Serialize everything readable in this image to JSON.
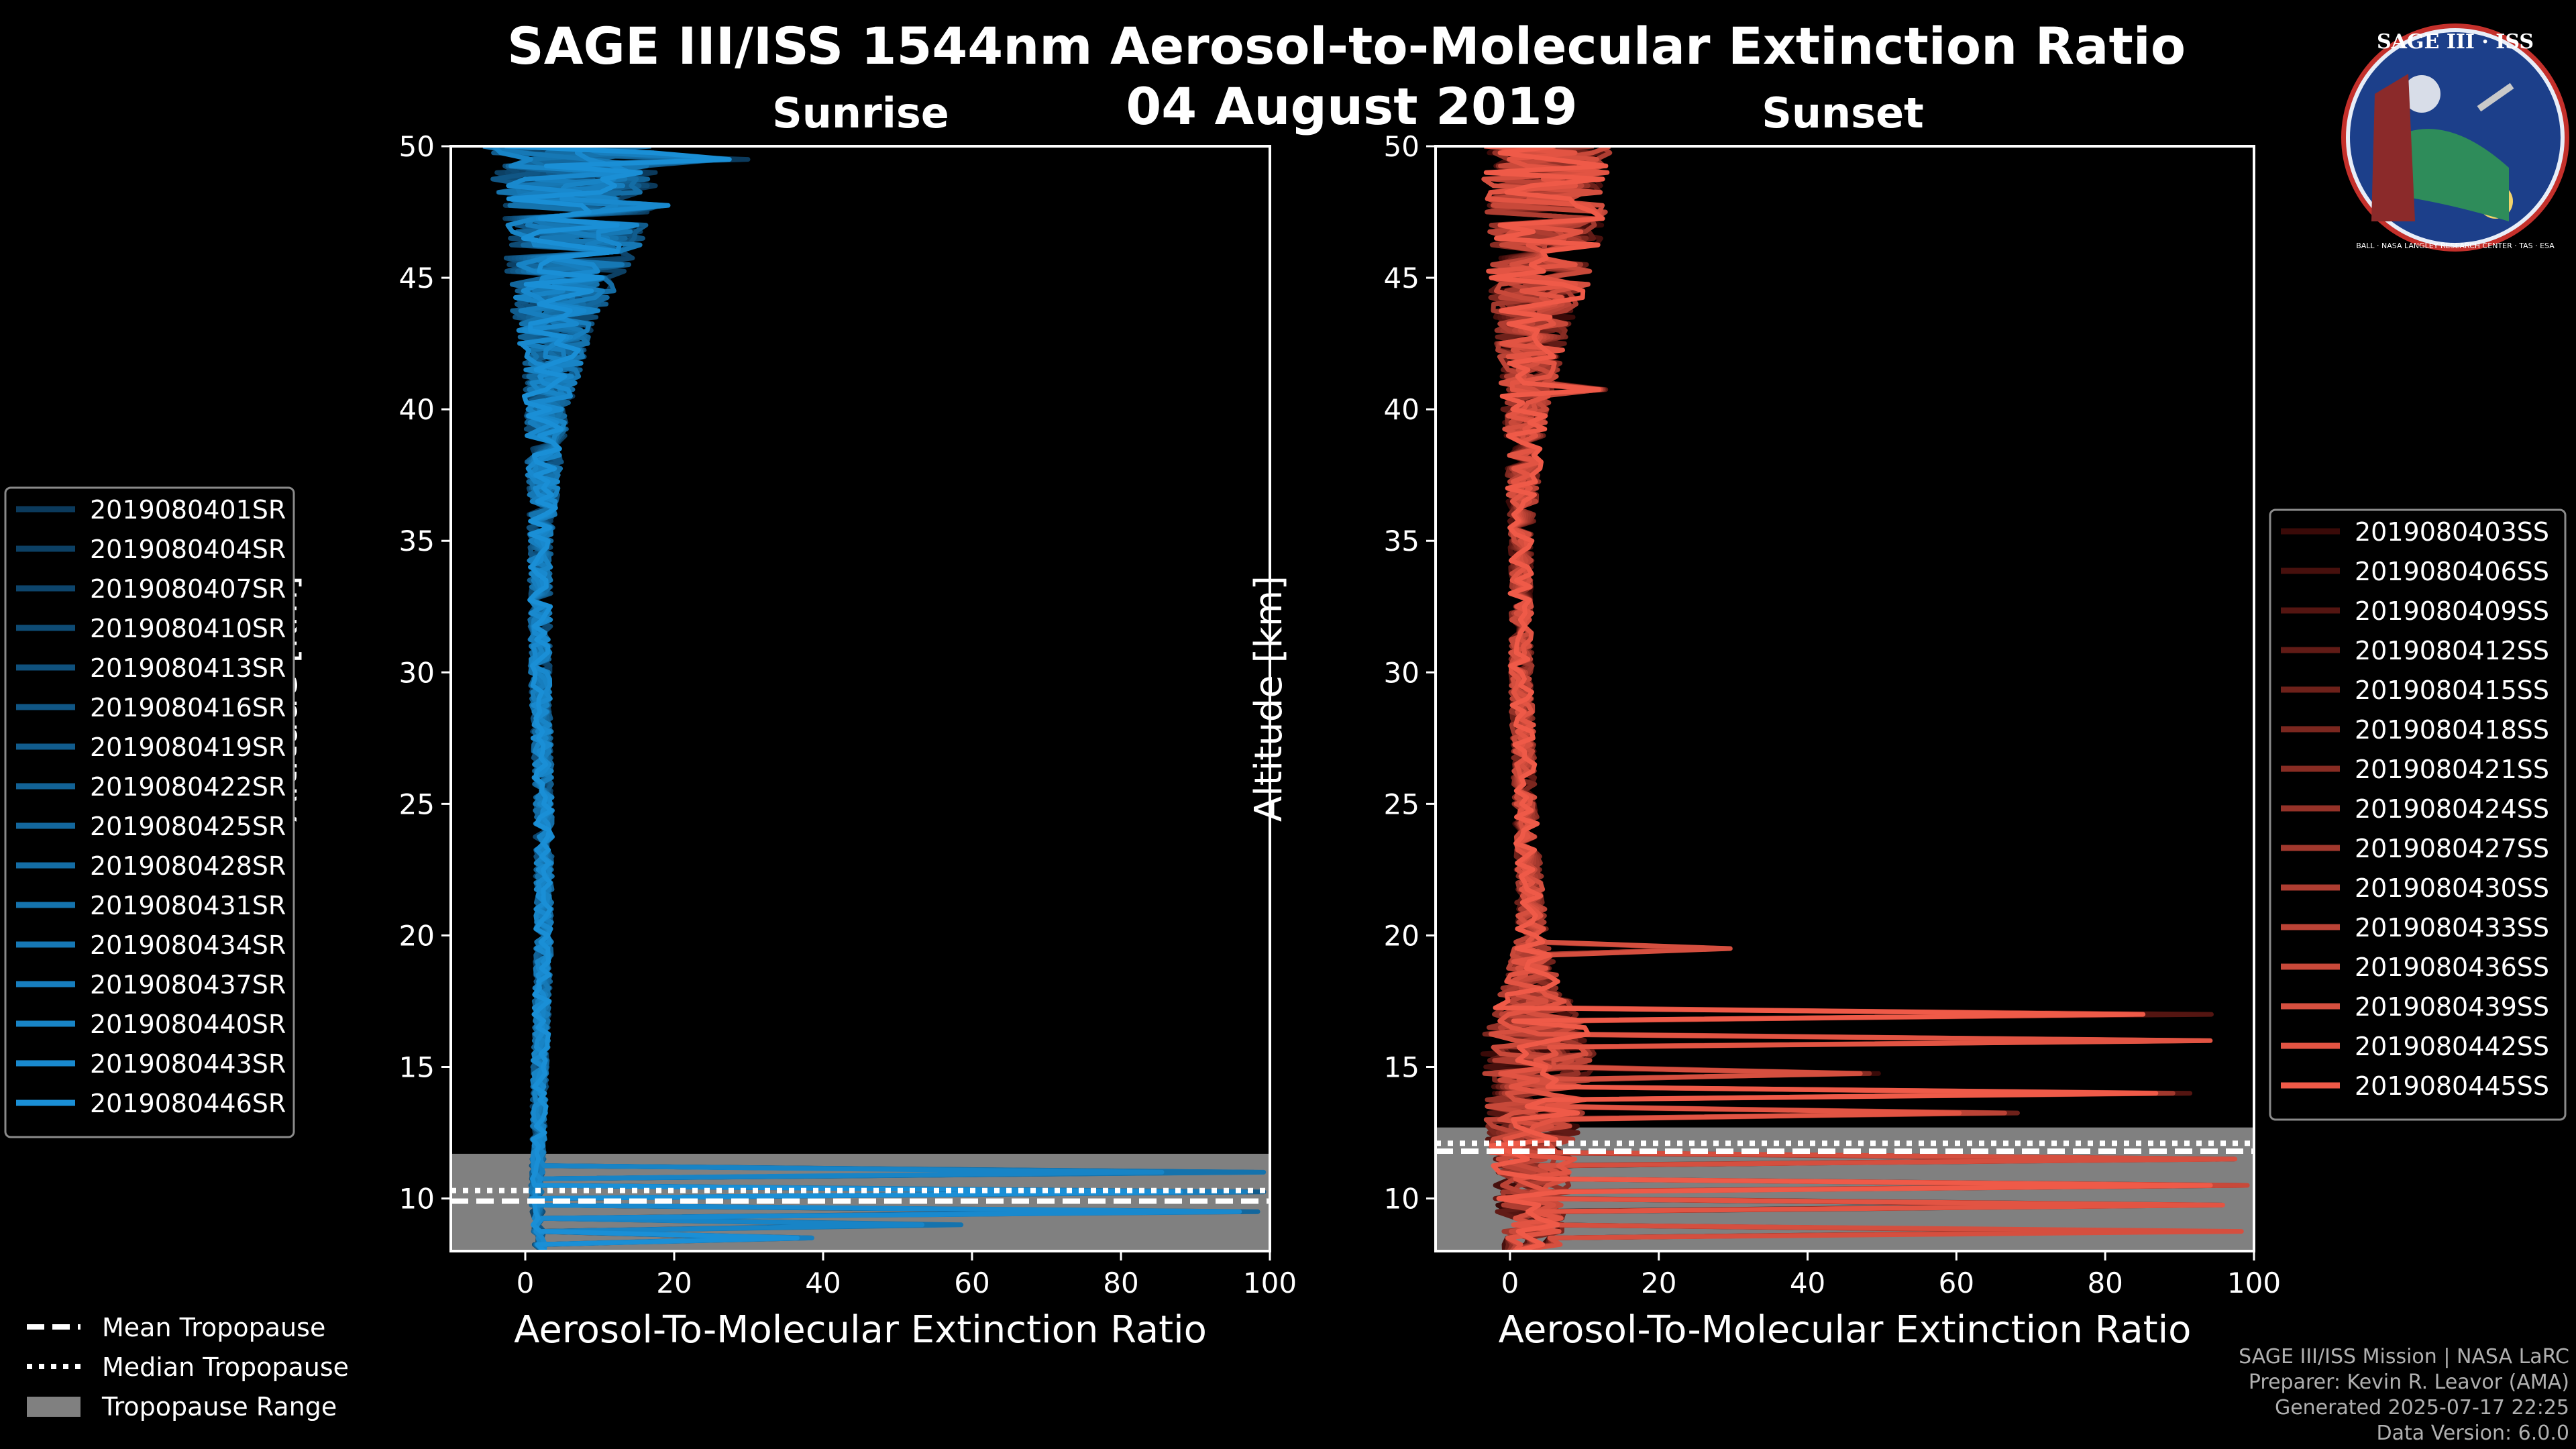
{
  "title": "SAGE III/ISS 1544nm Aerosol-to-Molecular Extinction Ratio",
  "date": "04 August 2019",
  "badge": {
    "top_text": "SAGE III · ISS",
    "ring_text": "BALL · NASA LANGLEY RESEARCH CENTER · TAS · ESA"
  },
  "footer": {
    "line1": "SAGE III/ISS Mission | NASA LaRC",
    "line2": "Preparer: Kevin R. Leavor (AMA)",
    "line3": "Generated 2025-07-17 22:25",
    "line4": "Data Version: 6.0.0"
  },
  "legend_bottom": {
    "mean": "Mean Tropopause",
    "median": "Median Tropopause",
    "range": "Tropopause Range"
  },
  "colors": {
    "background": "#000000",
    "tropopause_band": "#808080",
    "sunrise_dark": "#0b3a5c",
    "sunrise_light": "#1a8fd6",
    "sunset_dark": "#3a0a08",
    "sunset_light": "#ef5a48"
  },
  "chart_data": [
    {
      "type": "line",
      "title": "Sunrise",
      "xlabel": "Aerosol-To-Molecular Extinction Ratio",
      "ylabel": "Altitude [km]",
      "xlim": [
        -10,
        100
      ],
      "ylim": [
        8,
        50
      ],
      "xticks": [
        0,
        20,
        40,
        60,
        80,
        100
      ],
      "yticks": [
        10,
        15,
        20,
        25,
        30,
        35,
        40,
        45,
        50
      ],
      "tropopause": {
        "min": 8,
        "max": 11.7,
        "mean": 9.9,
        "median": 10.3
      },
      "series_names": [
        "2019080401SR",
        "2019080404SR",
        "2019080407SR",
        "2019080410SR",
        "2019080413SR",
        "2019080416SR",
        "2019080419SR",
        "2019080422SR",
        "2019080425SR",
        "2019080428SR",
        "2019080431SR",
        "2019080434SR",
        "2019080437SR",
        "2019080440SR",
        "2019080443SR",
        "2019080446SR"
      ],
      "profile_center": [
        [
          8.0,
          2
        ],
        [
          10,
          1.5
        ],
        [
          15,
          2
        ],
        [
          20,
          2.5
        ],
        [
          25,
          2.5
        ],
        [
          30,
          2
        ],
        [
          35,
          2
        ],
        [
          40,
          3
        ],
        [
          43,
          4
        ],
        [
          45,
          5
        ],
        [
          47,
          7
        ],
        [
          50,
          6
        ]
      ],
      "profile_spread": [
        [
          8.0,
          0.8
        ],
        [
          15,
          1.0
        ],
        [
          25,
          1.2
        ],
        [
          35,
          1.5
        ],
        [
          40,
          3
        ],
        [
          43,
          5
        ],
        [
          45,
          8
        ],
        [
          47,
          10
        ],
        [
          50,
          12
        ]
      ],
      "spikes": [
        {
          "alt": 49.5,
          "value": 30
        },
        {
          "alt": 47.8,
          "value": 20
        },
        {
          "alt": 11.0,
          "value": 100
        },
        {
          "alt": 10.3,
          "value": 100
        },
        {
          "alt": 9.6,
          "value": 100
        },
        {
          "alt": 9.0,
          "value": 60
        },
        {
          "alt": 8.5,
          "value": 40
        }
      ]
    },
    {
      "type": "line",
      "title": "Sunset",
      "xlabel": "Aerosol-To-Molecular Extinction Ratio",
      "ylabel": "Altitude [km]",
      "xlim": [
        -10,
        100
      ],
      "ylim": [
        8,
        50
      ],
      "xticks": [
        0,
        20,
        40,
        60,
        80,
        100
      ],
      "yticks": [
        10,
        15,
        20,
        25,
        30,
        35,
        40,
        45,
        50
      ],
      "tropopause": {
        "min": 8,
        "max": 12.7,
        "mean": 11.8,
        "median": 12.1
      },
      "series_names": [
        "2019080403SS",
        "2019080406SS",
        "2019080409SS",
        "2019080412SS",
        "2019080415SS",
        "2019080418SS",
        "2019080421SS",
        "2019080424SS",
        "2019080427SS",
        "2019080430SS",
        "2019080433SS",
        "2019080436SS",
        "2019080439SS",
        "2019080442SS",
        "2019080445SS"
      ],
      "profile_center": [
        [
          8.0,
          3
        ],
        [
          12,
          3
        ],
        [
          16,
          4
        ],
        [
          18,
          3
        ],
        [
          20,
          3
        ],
        [
          25,
          2
        ],
        [
          30,
          1.5
        ],
        [
          35,
          1.5
        ],
        [
          40,
          2
        ],
        [
          43,
          3
        ],
        [
          45,
          4
        ],
        [
          47,
          5
        ],
        [
          50,
          5
        ]
      ],
      "profile_spread": [
        [
          8.0,
          4
        ],
        [
          12,
          6
        ],
        [
          16,
          8
        ],
        [
          18,
          4
        ],
        [
          20,
          2
        ],
        [
          25,
          1.5
        ],
        [
          35,
          1.5
        ],
        [
          40,
          3
        ],
        [
          43,
          5
        ],
        [
          45,
          7
        ],
        [
          47,
          8
        ],
        [
          50,
          9
        ]
      ],
      "spikes": [
        {
          "alt": 19.6,
          "value": 30
        },
        {
          "alt": 17.1,
          "value": 95
        },
        {
          "alt": 16.1,
          "value": 100
        },
        {
          "alt": 14.8,
          "value": 50
        },
        {
          "alt": 14.0,
          "value": 93
        },
        {
          "alt": 13.3,
          "value": 70
        },
        {
          "alt": 11.5,
          "value": 100
        },
        {
          "alt": 10.6,
          "value": 100
        },
        {
          "alt": 9.8,
          "value": 100
        },
        {
          "alt": 8.7,
          "value": 100
        },
        {
          "alt": 40.8,
          "value": 13
        }
      ]
    }
  ]
}
